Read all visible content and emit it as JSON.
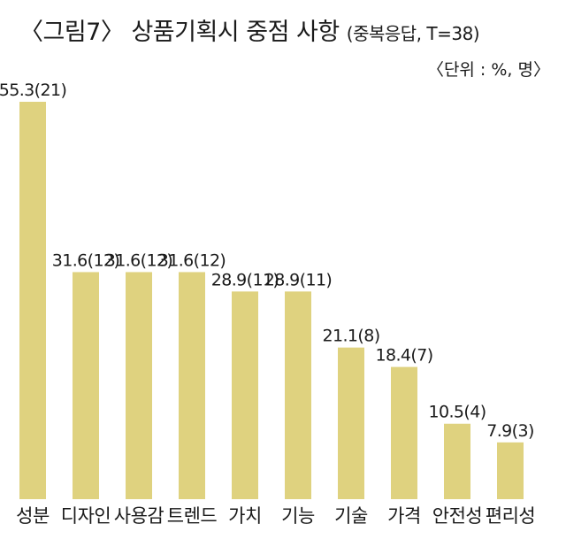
{
  "chart_data": {
    "type": "bar",
    "title": "〈그림7〉 상품기획시 중점 사항",
    "subtitle": "(중복응답, T=38)",
    "unit_note": "〈단위 : %, 명〉",
    "categories": [
      "성분",
      "디자인",
      "사용감",
      "트렌드",
      "가치",
      "기능",
      "기술",
      "가격",
      "안전성",
      "편리성"
    ],
    "values": [
      55.3,
      31.6,
      31.6,
      31.6,
      28.9,
      28.9,
      21.1,
      18.4,
      10.5,
      7.9
    ],
    "counts": [
      21,
      12,
      12,
      12,
      11,
      11,
      8,
      7,
      4,
      3
    ],
    "data_labels": [
      "55.3(21)",
      "31.6(12)",
      "31.6(12)",
      "31.6(12)",
      "28.9(11)",
      "28.9(11)",
      "21.1(8)",
      "18.4(7)",
      "10.5(4)",
      "7.9(3)"
    ],
    "ylim": [
      0,
      55.3
    ],
    "grid": false,
    "bar_color": "#dfd27f"
  }
}
